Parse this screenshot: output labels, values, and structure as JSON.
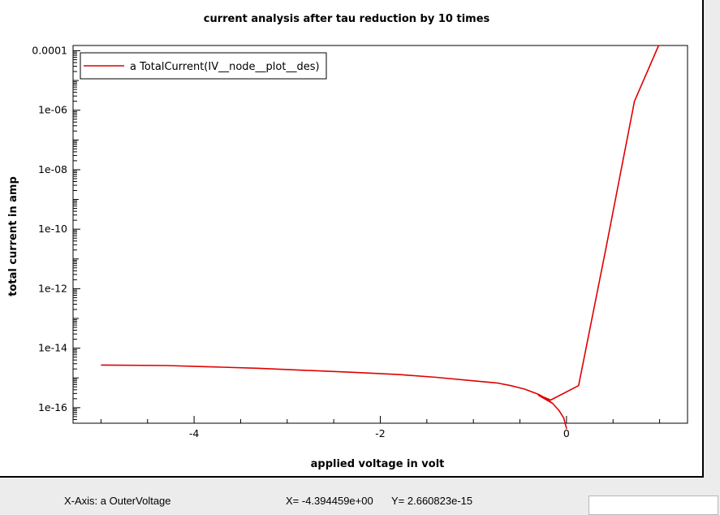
{
  "status_bar": {
    "x_axis_text": "X-Axis: a OuterVoltage",
    "x_coord_text": "X= -4.394459e+00",
    "y_coord_text": "Y= 2.660823e-15"
  },
  "colors": {
    "series": "#e00000",
    "axis": "#000000",
    "background": "#ffffff"
  },
  "chart_data": {
    "type": "line",
    "title": "current analysis after tau reduction by 10 times",
    "xlabel": "applied voltage in volt",
    "ylabel": "total current in amp",
    "xlim": [
      -5.3,
      1.3
    ],
    "ylim": [
      3e-17,
      0.00015
    ],
    "yscale": "log",
    "grid": false,
    "legend_position": "top-left",
    "x_ticks": [
      -4,
      -2,
      0
    ],
    "x_tick_labels": [
      "-4",
      "-2",
      "0"
    ],
    "y_ticks": [
      0.0001,
      1e-06,
      1e-08,
      1e-10,
      1e-12,
      1e-14,
      1e-16
    ],
    "y_tick_labels": [
      "0.0001",
      "1e-06",
      "1e-08",
      "1e-10",
      "1e-12",
      "1e-14",
      "1e-16"
    ],
    "series": [
      {
        "name": "a TotalCurrent(IV__node__plot__des)",
        "x": [
          -5.0,
          -4.3,
          -3.7,
          -3.3,
          -2.8,
          -2.3,
          -1.8,
          -1.4,
          -1.0,
          -0.75,
          -0.6,
          -0.45,
          -0.3,
          -0.24,
          -0.15,
          -0.08,
          -0.03,
          0.0,
          0.0,
          -0.03,
          -0.08,
          -0.15,
          -0.3,
          -0.25,
          -0.17,
          0.13,
          0.42,
          0.73,
          0.99
        ],
        "y": [
          2.7e-15,
          2.6e-15,
          2.3e-15,
          2.1e-15,
          1.8e-15,
          1.55e-15,
          1.3e-15,
          1.05e-15,
          8e-16,
          6.8e-16,
          5.5e-16,
          4.2e-16,
          2.8e-16,
          2.2e-16,
          1.4e-16,
          8e-17,
          4.5e-17,
          2e-17,
          2e-17,
          4.5e-17,
          8e-17,
          1.4e-16,
          2.6e-16,
          2.3e-16,
          1.8e-16,
          5.5e-16,
          2e-11,
          2e-06,
          0.00015
        ]
      }
    ]
  }
}
